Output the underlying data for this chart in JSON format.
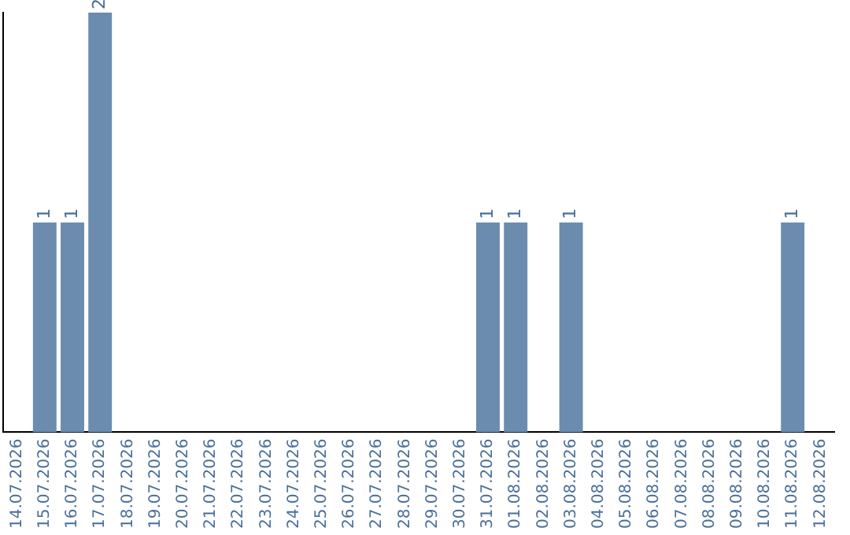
{
  "chart_data": {
    "type": "bar",
    "categories": [
      "14.07.2026",
      "15.07.2026",
      "16.07.2026",
      "17.07.2026",
      "18.07.2026",
      "19.07.2026",
      "20.07.2026",
      "21.07.2026",
      "22.07.2026",
      "23.07.2026",
      "24.07.2026",
      "25.07.2026",
      "26.07.2026",
      "27.07.2026",
      "28.07.2026",
      "29.07.2026",
      "30.07.2026",
      "31.07.2026",
      "01.08.2026",
      "02.08.2026",
      "03.08.2026",
      "04.08.2026",
      "05.08.2026",
      "06.08.2026",
      "07.08.2026",
      "08.08.2026",
      "09.08.2026",
      "10.08.2026",
      "11.08.2026",
      "12.08.2026"
    ],
    "values": [
      0,
      1,
      1,
      2,
      0,
      0,
      0,
      0,
      0,
      0,
      0,
      0,
      0,
      0,
      0,
      0,
      0,
      1,
      1,
      0,
      1,
      0,
      0,
      0,
      0,
      0,
      0,
      0,
      1,
      0
    ],
    "value_labels": [
      null,
      "1",
      "1",
      "2",
      null,
      null,
      null,
      null,
      null,
      null,
      null,
      null,
      null,
      null,
      null,
      null,
      null,
      "1",
      "1",
      null,
      "1",
      null,
      null,
      null,
      null,
      null,
      null,
      null,
      "1",
      null
    ],
    "color": "#6b8cae",
    "tick_labels": "x",
    "grid": false,
    "legend": false
  }
}
